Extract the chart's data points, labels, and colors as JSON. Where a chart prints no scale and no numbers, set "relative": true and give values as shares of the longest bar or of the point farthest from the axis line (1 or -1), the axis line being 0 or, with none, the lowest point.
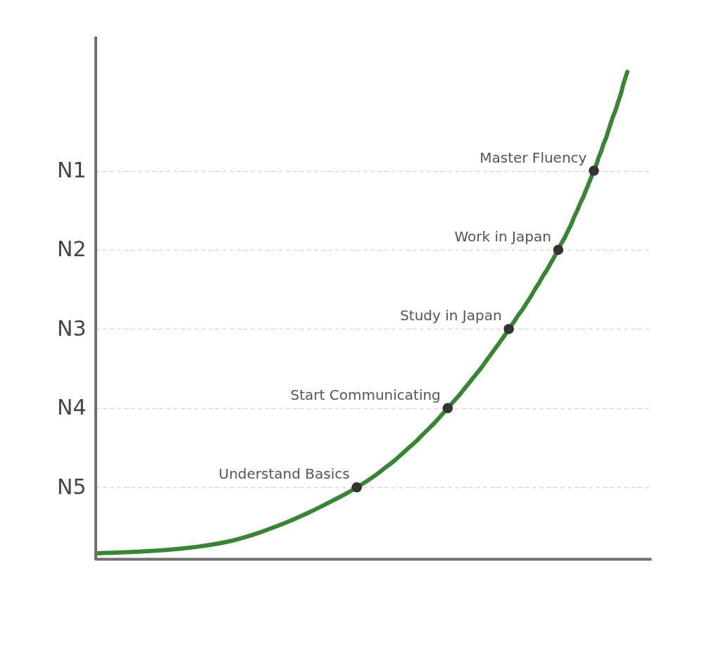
{
  "chart_data": {
    "type": "line",
    "orientation": "horizontal",
    "relative": true,
    "categories": [
      null,
      null,
      null,
      null,
      null,
      null,
      null,
      null,
      null,
      null,
      null,
      null,
      null,
      null,
      null,
      "N1",
      null,
      null,
      null,
      null,
      null,
      null,
      null,
      null,
      null,
      null,
      null,
      "N2",
      null,
      null,
      null,
      null,
      null,
      null,
      null,
      null,
      null,
      null,
      null,
      "N3",
      null,
      null,
      null,
      null,
      null,
      null,
      null,
      null,
      null,
      null,
      null,
      "N4",
      null,
      null,
      null,
      null,
      null,
      null,
      null,
      null,
      null,
      null,
      null,
      "N5",
      null,
      null,
      null,
      null,
      null,
      null,
      null,
      null,
      null,
      null
    ],
    "grid": "y",
    "series": [
      {
        "color": "#3a8534",
        "values": [
          1,
          0.996,
          0.992,
          0.989,
          0.985,
          0.981,
          0.977,
          0.972,
          0.968,
          0.964,
          0.96,
          0.955,
          0.951,
          0.946,
          0.942,
          0.937,
          0.932,
          0.927,
          0.922,
          0.917,
          0.911,
          0.906,
          0.9,
          0.895,
          0.889,
          0.883,
          0.876,
          0.87,
          0.863,
          0.856,
          0.849,
          0.841,
          0.834,
          0.826,
          0.819,
          0.811,
          0.803,
          0.794,
          0.786,
          0.777,
          0.769,
          0.76,
          0.751,
          0.742,
          0.733,
          0.724,
          0.714,
          0.704,
          0.694,
          0.684,
          0.673,
          0.662,
          0.651,
          0.64,
          0.628,
          0.615,
          0.603,
          0.589,
          0.575,
          0.561,
          0.545,
          0.529,
          0.511,
          0.491,
          0.47,
          0.446,
          0.422,
          0.396,
          0.368,
          0.337,
          0.303,
          0.261,
          0.192,
          0.004
        ]
      },
      {
        "type": "scatter",
        "color": "#333333",
        "marker": "circle",
        "values": [
          null,
          null,
          null,
          null,
          null,
          null,
          null,
          null,
          null,
          null,
          null,
          null,
          null,
          null,
          null,
          0.937,
          null,
          null,
          null,
          null,
          null,
          null,
          null,
          null,
          null,
          null,
          null,
          0.87,
          null,
          null,
          null,
          null,
          null,
          null,
          null,
          null,
          null,
          null,
          null,
          0.777,
          null,
          null,
          null,
          null,
          null,
          null,
          null,
          null,
          null,
          null,
          null,
          0.662,
          null,
          null,
          null,
          null,
          null,
          null,
          null,
          null,
          null,
          null,
          null,
          0.491,
          null,
          null,
          null,
          null,
          null,
          null,
          null,
          null,
          null,
          null
        ]
      }
    ],
    "annotations": [
      "Master Fluency",
      "Work in Japan",
      "Study in Japan",
      "Start Communicating",
      "Understand Basics"
    ]
  }
}
